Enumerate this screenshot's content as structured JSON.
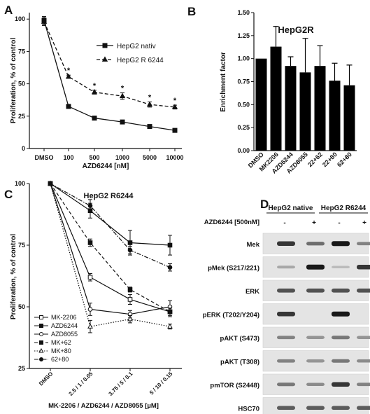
{
  "panels": {
    "A": {
      "letter": "A",
      "chart_data": {
        "type": "line",
        "xlabel": "AZD6244 [nM]",
        "ylabel": "Proliferation, % of control",
        "categories": [
          "DMSO",
          "100",
          "500",
          "1000",
          "5000",
          "10000"
        ],
        "yticks": [
          0,
          25,
          50,
          75,
          100
        ],
        "ylim": [
          0,
          105
        ],
        "legend": "top-right",
        "series": [
          {
            "name": "HepG2 nativ",
            "style": "solid",
            "marker": "square",
            "values": [
              99,
              32.5,
              23.5,
              20.5,
              17,
              14
            ],
            "err": [
              3,
              0.8,
              0.8,
              0.9,
              0.8,
              0.6
            ]
          },
          {
            "name": "HepG2 R 6244",
            "style": "dashed",
            "marker": "triangle",
            "values": [
              98,
              55.5,
              43.5,
              40.5,
              34,
              32
            ],
            "err": [
              3,
              1.2,
              1.5,
              2.5,
              2,
              1.5
            ]
          }
        ],
        "annotations": [
          {
            "category": "100",
            "text": "*"
          },
          {
            "category": "500",
            "text": "*"
          },
          {
            "category": "1000",
            "text": "*"
          },
          {
            "category": "5000",
            "text": "*"
          },
          {
            "category": "10000",
            "text": "*"
          }
        ]
      }
    },
    "B": {
      "letter": "B",
      "chart_data": {
        "type": "bar",
        "title": "HepG2R",
        "ylabel": "Enrichment factor",
        "categories": [
          "DMSO",
          "MK2206",
          "AZD6244",
          "AZD8055",
          "22+62",
          "22+80",
          "62+80"
        ],
        "values": [
          1.0,
          1.13,
          0.92,
          0.85,
          0.92,
          0.76,
          0.71
        ],
        "err": [
          0,
          0.22,
          0.1,
          0.37,
          0.22,
          0.19,
          0.22
        ],
        "ylim": [
          0,
          1.5
        ],
        "yticks": [
          "0.00",
          "0.25",
          "0.50",
          "0.75",
          "1.00",
          "1.25",
          "1.50"
        ]
      }
    },
    "C": {
      "letter": "C",
      "chart_data": {
        "type": "line",
        "title": "HepG2 R6244",
        "xlabel": "MK-2206 / AZD6244 / AZD8055 [µM]",
        "ylabel": "Proliferation, % of control",
        "categories": [
          "DMSO",
          "2.5 / 1 / 0.05",
          "3.75 / 5 / 0.1",
          "5 / 10 / 0.15"
        ],
        "yticks": [
          25,
          50,
          75,
          100
        ],
        "ylim": [
          25,
          100
        ],
        "legend": "bottom-left",
        "series": [
          {
            "name": "MK-2206",
            "line": "solid",
            "marker": "open-square",
            "values": [
              100,
              62,
              53,
              48
            ],
            "err": [
              0,
              1.5,
              2,
              2
            ]
          },
          {
            "name": "AZD6244",
            "line": "solid",
            "marker": "filled-square",
            "values": [
              100,
              89,
              76,
              75
            ],
            "err": [
              0,
              3,
              5,
              4
            ]
          },
          {
            "name": "AZD8055",
            "line": "solid",
            "marker": "open-circle",
            "values": [
              100,
              49,
              47,
              50
            ],
            "err": [
              0,
              2.5,
              1.5,
              2.5
            ]
          },
          {
            "name": "MK+62",
            "line": "dashed",
            "marker": "filled-square",
            "values": [
              100,
              76,
              57,
              48
            ],
            "err": [
              0,
              1.5,
              1,
              1.5
            ]
          },
          {
            "name": "MK+80",
            "line": "dotted",
            "marker": "open-triangle",
            "values": [
              100,
              42,
              45,
              42
            ],
            "err": [
              0,
              2.5,
              1.5,
              1
            ]
          },
          {
            "name": "62+80",
            "line": "dash-dot",
            "marker": "filled-circle",
            "values": [
              100,
              91,
              73,
              66
            ],
            "err": [
              0,
              2.5,
              1.5,
              1.5
            ]
          }
        ]
      }
    },
    "D": {
      "letter": "D",
      "groups": [
        "HepG2 native",
        "HepG2 R6244"
      ],
      "treatment_label": "AZD6244 [500nM]",
      "lane_signs": [
        "-",
        "+",
        "-",
        "+"
      ],
      "rows": [
        {
          "label": "Mek",
          "bands": [
            0.85,
            0.55,
            1.0,
            0.45
          ]
        },
        {
          "label": "pMek (S217/221)",
          "bands": [
            0.25,
            1.0,
            0.15,
            0.85
          ]
        },
        {
          "label": "ERK",
          "bands": [
            0.7,
            0.7,
            0.7,
            0.7
          ]
        },
        {
          "label": "pERK (T202/Y204)",
          "bands": [
            0.85,
            0.05,
            1.0,
            0.05
          ]
        },
        {
          "label": "pAKT (S473)",
          "bands": [
            0.45,
            0.35,
            0.5,
            0.35
          ]
        },
        {
          "label": "pAKT (T308)",
          "bands": [
            0.45,
            0.35,
            0.5,
            0.4
          ]
        },
        {
          "label": "pmTOR (S2448)",
          "bands": [
            0.5,
            0.4,
            0.85,
            0.45
          ]
        },
        {
          "label": "HSC70",
          "bands": [
            0.65,
            0.65,
            0.65,
            0.65
          ]
        }
      ]
    }
  }
}
